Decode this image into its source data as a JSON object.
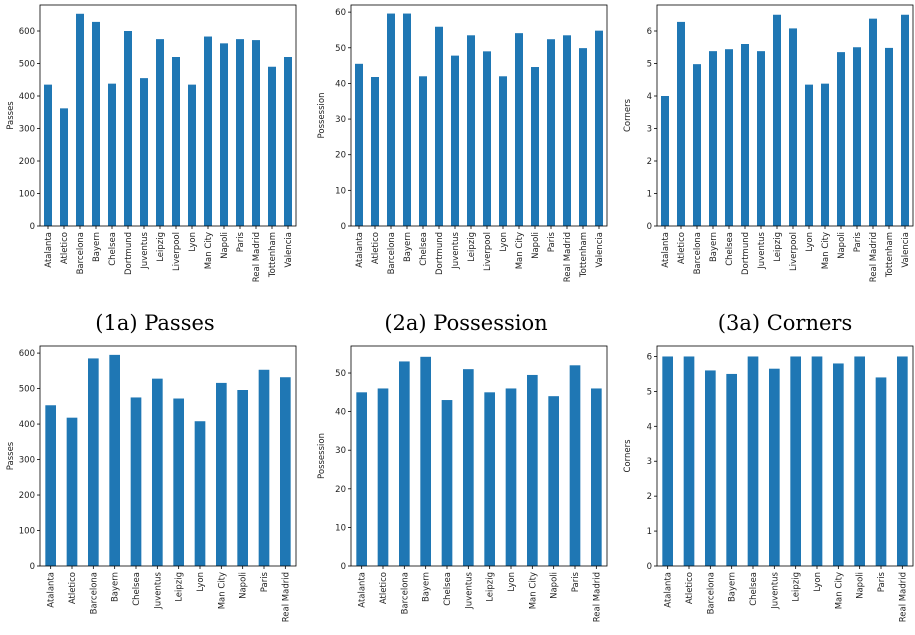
{
  "figure": {
    "captions": [
      "(1a) Passes",
      "(2a) Possession",
      "(3a) Corners"
    ]
  },
  "colors": {
    "bar": "#1f77b4",
    "axis": "#000000",
    "tick_text": "#222222"
  },
  "chart_data": [
    {
      "type": "bar",
      "ylabel": "Passes",
      "ylim": [
        0,
        680
      ],
      "yticks": [
        0,
        100,
        200,
        300,
        400,
        500,
        600
      ],
      "categories": [
        "Atalanta",
        "Atletico",
        "Barcelona",
        "Bayern",
        "Chelsea",
        "Dortmund",
        "Juventus",
        "Leipzig",
        "Liverpool",
        "Lyon",
        "Man City",
        "Napoli",
        "Paris",
        "Real Madrid",
        "Tottenham",
        "Valencia"
      ],
      "values": [
        435,
        362,
        653,
        628,
        438,
        600,
        455,
        575,
        520,
        435,
        583,
        562,
        575,
        572,
        490,
        520
      ]
    },
    {
      "type": "bar",
      "ylabel": "Possession",
      "ylim": [
        0,
        62
      ],
      "yticks": [
        0,
        10,
        20,
        30,
        40,
        50,
        60
      ],
      "categories": [
        "Atalanta",
        "Atletico",
        "Barcelona",
        "Bayern",
        "Chelsea",
        "Dortmund",
        "Juventus",
        "Leipzig",
        "Liverpool",
        "Lyon",
        "Man City",
        "Napoli",
        "Paris",
        "Real Madrid",
        "Tottenham",
        "Valencia"
      ],
      "values": [
        45.5,
        41.8,
        59.6,
        59.6,
        42,
        55.9,
        47.8,
        53.5,
        49,
        42,
        54.1,
        44.6,
        52.4,
        53.5,
        49.9,
        54.8
      ]
    },
    {
      "type": "bar",
      "ylabel": "Corners",
      "ylim": [
        0,
        6.8
      ],
      "yticks": [
        0,
        1,
        2,
        3,
        4,
        5,
        6
      ],
      "categories": [
        "Atalanta",
        "Atletico",
        "Barcelona",
        "Bayern",
        "Chelsea",
        "Dortmund",
        "Juventus",
        "Leipzig",
        "Liverpool",
        "Lyon",
        "Man City",
        "Napoli",
        "Paris",
        "Real Madrid",
        "Tottenham",
        "Valencia"
      ],
      "values": [
        4,
        6.28,
        4.98,
        5.38,
        5.44,
        5.6,
        5.38,
        6.5,
        6.08,
        4.35,
        4.38,
        5.35,
        5.5,
        6.38,
        5.48,
        6.5
      ]
    },
    {
      "type": "bar",
      "ylabel": "Passes",
      "ylim": [
        0,
        620
      ],
      "yticks": [
        0,
        100,
        200,
        300,
        400,
        500,
        600
      ],
      "categories": [
        "Atalanta",
        "Atletico",
        "Barcelona",
        "Bayern",
        "Chelsea",
        "Juventus",
        "Leipzig",
        "Lyon",
        "Man City",
        "Napoli",
        "Paris",
        "Real Madrid"
      ],
      "values": [
        453,
        418,
        585,
        595,
        475,
        528,
        472,
        408,
        516,
        496,
        553,
        532
      ]
    },
    {
      "type": "bar",
      "ylabel": "Possession",
      "ylim": [
        0,
        57
      ],
      "yticks": [
        0,
        10,
        20,
        30,
        40,
        50
      ],
      "categories": [
        "Atalanta",
        "Atletico",
        "Barcelona",
        "Bayern",
        "Chelsea",
        "Juventus",
        "Leipzig",
        "Lyon",
        "Man City",
        "Napoli",
        "Paris",
        "Real Madrid"
      ],
      "values": [
        45,
        46,
        53,
        54.2,
        43,
        51,
        45,
        46,
        49.5,
        44,
        52,
        46
      ]
    },
    {
      "type": "bar",
      "ylabel": "Corners",
      "ylim": [
        0,
        6.3
      ],
      "yticks": [
        0,
        1,
        2,
        3,
        4,
        5,
        6
      ],
      "categories": [
        "Atalanta",
        "Atletico",
        "Barcelona",
        "Bayern",
        "Chelsea",
        "Juventus",
        "Leipzig",
        "Lyon",
        "Man City",
        "Napoli",
        "Paris",
        "Real Madrid"
      ],
      "values": [
        6,
        6,
        5.6,
        5.5,
        6,
        5.65,
        6,
        6,
        5.8,
        6,
        5.4,
        6
      ]
    }
  ]
}
